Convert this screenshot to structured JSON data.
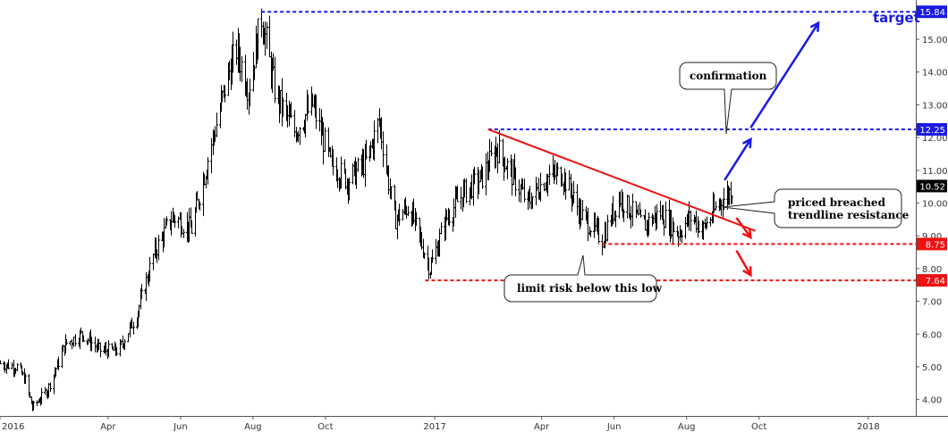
{
  "chart_data": {
    "type": "ohlc",
    "title": "",
    "xlabel": "",
    "ylabel": "",
    "ylim": [
      3.5,
      16.2
    ],
    "y_ticks": [
      "4.00",
      "5.00",
      "6.00",
      "7.00",
      "8.00",
      "9.00",
      "10.00",
      "11.00",
      "12.00",
      "13.00",
      "14.00",
      "15.00"
    ],
    "x_ticks": [
      "2016",
      "Apr",
      "Jun",
      "Aug",
      "Oct",
      "2017",
      "Apr",
      "Jun",
      "Aug",
      "Oct",
      "2018"
    ],
    "x_tick_dates": [
      "2016-01-01",
      "2016-04-01",
      "2016-06-01",
      "2016-08-01",
      "2016-10-01",
      "2017-01-01",
      "2017-04-01",
      "2017-06-01",
      "2017-08-01",
      "2017-10-01",
      "2018-01-01"
    ],
    "x_range": [
      "2016-01-01",
      "2018-02-10"
    ],
    "price_path": [
      [
        "2016-01-01",
        5.1
      ],
      [
        "2016-01-15",
        5.0
      ],
      [
        "2016-01-22",
        4.6
      ],
      [
        "2016-01-28",
        3.75
      ],
      [
        "2016-02-10",
        4.3
      ],
      [
        "2016-02-25",
        5.7
      ],
      [
        "2016-03-10",
        6.0
      ],
      [
        "2016-03-25",
        5.5
      ],
      [
        "2016-04-10",
        5.5
      ],
      [
        "2016-04-25",
        6.6
      ],
      [
        "2016-05-10",
        8.5
      ],
      [
        "2016-05-25",
        9.6
      ],
      [
        "2016-06-10",
        9.2
      ],
      [
        "2016-06-25",
        11.5
      ],
      [
        "2016-07-10",
        13.8
      ],
      [
        "2016-07-18",
        14.7
      ],
      [
        "2016-07-28",
        13.5
      ],
      [
        "2016-08-08",
        15.7
      ],
      [
        "2016-08-20",
        13.3
      ],
      [
        "2016-09-05",
        12.2
      ],
      [
        "2016-09-20",
        13.0
      ],
      [
        "2016-10-05",
        11.2
      ],
      [
        "2016-10-20",
        10.7
      ],
      [
        "2016-11-05",
        11.3
      ],
      [
        "2016-11-15",
        12.5
      ],
      [
        "2016-11-28",
        9.5
      ],
      [
        "2016-12-10",
        9.9
      ],
      [
        "2016-12-28",
        8.0
      ],
      [
        "2017-01-10",
        9.5
      ],
      [
        "2017-01-25",
        10.3
      ],
      [
        "2017-02-10",
        10.8
      ],
      [
        "2017-02-22",
        11.7
      ],
      [
        "2017-03-05",
        11.0
      ],
      [
        "2017-03-20",
        10.0
      ],
      [
        "2017-04-05",
        10.8
      ],
      [
        "2017-04-18",
        10.9
      ],
      [
        "2017-05-05",
        9.6
      ],
      [
        "2017-05-22",
        8.9
      ],
      [
        "2017-06-05",
        10.2
      ],
      [
        "2017-06-25",
        9.3
      ],
      [
        "2017-07-10",
        9.7
      ],
      [
        "2017-07-25",
        9.1
      ],
      [
        "2017-08-05",
        9.6
      ],
      [
        "2017-08-15",
        9.2
      ],
      [
        "2017-08-28",
        10.0
      ],
      [
        "2017-09-05",
        10.3
      ],
      [
        "2017-09-10",
        10.52
      ]
    ],
    "last_price": "10.52",
    "levels": [
      {
        "label": "15.84",
        "value": 15.84,
        "color": "#1a1ae6",
        "start": "2016-08-08"
      },
      {
        "label": "12.25",
        "value": 12.25,
        "color": "#1a1ae6",
        "start": "2017-02-15"
      },
      {
        "label": "8.75",
        "value": 8.75,
        "color": "#ee1111",
        "start": "2017-05-22"
      },
      {
        "label": "7.64",
        "value": 7.64,
        "color": "#ee1111",
        "start": "2016-12-24"
      }
    ],
    "trendline": {
      "from": [
        "2017-02-15",
        12.25
      ],
      "to": [
        "2017-09-28",
        9.15
      ],
      "color": "#ee1111"
    },
    "arrows": [
      {
        "color": "#1a1ae6",
        "from": [
          "2017-09-02",
          10.7
        ],
        "to": [
          "2017-09-24",
          11.95
        ]
      },
      {
        "color": "#1a1ae6",
        "from": [
          "2017-09-24",
          12.3
        ],
        "to": [
          "2017-11-20",
          15.5
        ]
      },
      {
        "color": "#ee1111",
        "from": [
          "2017-09-12",
          9.55
        ],
        "to": [
          "2017-09-24",
          8.95
        ]
      },
      {
        "color": "#ee1111",
        "from": [
          "2017-09-12",
          8.55
        ],
        "to": [
          "2017-09-24",
          7.8
        ]
      }
    ],
    "annotations": {
      "target": "target",
      "confirmation": "confirmation",
      "breach_line1": "priced breached",
      "breach_line2": "trendline resistance",
      "risk": "limit risk below this low"
    },
    "colors": {
      "bars": "#000000",
      "blue": "#1a1ae6",
      "red": "#ee1111",
      "last_bg": "#000000"
    }
  }
}
